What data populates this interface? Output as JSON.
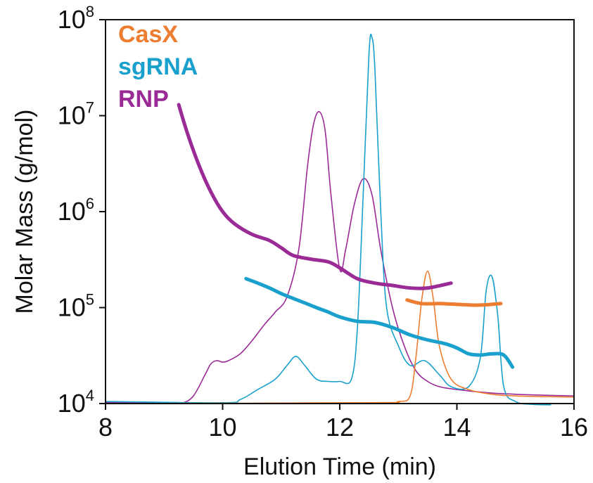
{
  "chart_data": {
    "type": "line",
    "xlabel": "Elution Time (min)",
    "ylabel": "Molar Mass (g/mol)",
    "xlim": [
      8,
      16
    ],
    "ylim": [
      10000,
      100000000
    ],
    "yscale": "log",
    "x_ticks": [
      "8",
      "10",
      "12",
      "14",
      "16"
    ],
    "y_ticks": [
      {
        "base": "10",
        "exp": "4"
      },
      {
        "base": "10",
        "exp": "5"
      },
      {
        "base": "10",
        "exp": "6"
      },
      {
        "base": "10",
        "exp": "7"
      },
      {
        "base": "10",
        "exp": "8"
      }
    ],
    "legend": {
      "placement": "top-left",
      "entries": [
        {
          "name": "CasX",
          "color": "#ED7D31"
        },
        {
          "name": "sgRNA",
          "color": "#1AA0CC"
        },
        {
          "name": "RNP",
          "color": "#9A2A96"
        }
      ]
    },
    "grid": false,
    "series": [
      {
        "name": "RNP",
        "kind": "molar_mass",
        "color": "#9A2A96",
        "x": [
          9.25,
          9.4,
          9.6,
          9.8,
          10.0,
          10.2,
          10.5,
          10.8,
          11.0,
          11.2,
          11.5,
          11.8,
          12.0,
          12.3,
          12.6,
          12.9,
          13.2,
          13.5,
          13.9
        ],
        "y": [
          13000000,
          6500000,
          3000000,
          1600000,
          1000000,
          750000,
          580000,
          500000,
          420000,
          350000,
          320000,
          300000,
          260000,
          200000,
          180000,
          170000,
          160000,
          160000,
          180000
        ]
      },
      {
        "name": "sgRNA",
        "kind": "molar_mass",
        "color": "#1AA0CC",
        "x": [
          10.4,
          10.6,
          10.8,
          11.0,
          11.2,
          11.4,
          11.6,
          11.8,
          12.0,
          12.3,
          12.6,
          12.9,
          13.2,
          13.5,
          13.8,
          14.0,
          14.2,
          14.4,
          14.6,
          14.8,
          14.95
        ],
        "y": [
          200000,
          180000,
          160000,
          140000,
          125000,
          112000,
          100000,
          90000,
          80000,
          72000,
          70000,
          62000,
          52000,
          46000,
          42000,
          38000,
          33000,
          32000,
          33000,
          32000,
          24000
        ]
      },
      {
        "name": "CasX",
        "kind": "molar_mass",
        "color": "#ED7D31",
        "x": [
          13.15,
          13.4,
          13.7,
          14.0,
          14.3,
          14.5,
          14.75
        ],
        "y": [
          120000,
          110000,
          110000,
          108000,
          106000,
          107000,
          110000
        ]
      },
      {
        "name": "RNP",
        "kind": "detector_trace",
        "color": "#9A2A96",
        "x": [
          8.0,
          9.0,
          9.3,
          9.5,
          9.7,
          9.8,
          9.9,
          10.0,
          10.1,
          10.3,
          10.5,
          10.7,
          10.9,
          11.1,
          11.3,
          11.45,
          11.55,
          11.65,
          11.75,
          11.85,
          12.0,
          12.1,
          12.25,
          12.4,
          12.55,
          12.7,
          12.9,
          13.1,
          13.3,
          13.5,
          13.7,
          14.0,
          14.5,
          15.0,
          15.5,
          16.0
        ],
        "y": [
          10300,
          10100,
          10100,
          12000,
          20000,
          26000,
          28000,
          27000,
          28000,
          33000,
          45000,
          65000,
          90000,
          130000,
          400000,
          3000000,
          8000000,
          11000000,
          7000000,
          1500000,
          250000,
          400000,
          1200000,
          2200000,
          1500000,
          400000,
          100000,
          40000,
          22000,
          17000,
          15000,
          14000,
          13000,
          12500,
          12200,
          12000
        ]
      },
      {
        "name": "sgRNA",
        "kind": "detector_trace",
        "color": "#1AA0CC",
        "x": [
          8.0,
          10.0,
          10.3,
          10.6,
          10.9,
          11.1,
          11.25,
          11.4,
          11.6,
          11.8,
          12.0,
          12.2,
          12.3,
          12.4,
          12.5,
          12.55,
          12.6,
          12.7,
          12.8,
          13.0,
          13.2,
          13.45,
          13.7,
          13.9,
          14.2,
          14.4,
          14.5,
          14.6,
          14.7,
          14.8,
          15.0,
          15.3,
          15.6
        ],
        "y": [
          10500,
          10200,
          11000,
          14000,
          18000,
          25000,
          31000,
          25000,
          18000,
          17000,
          17000,
          18000,
          60000,
          1500000,
          45000000,
          65000000,
          30000000,
          1000000,
          100000,
          40000,
          25000,
          28000,
          20000,
          15000,
          15000,
          30000,
          150000,
          210000,
          80000,
          15000,
          10500,
          9800,
          9700
        ]
      },
      {
        "name": "CasX",
        "kind": "detector_trace",
        "color": "#ED7D31",
        "x": [
          8.0,
          12.5,
          13.0,
          13.2,
          13.3,
          13.4,
          13.5,
          13.6,
          13.7,
          13.9,
          14.2,
          14.6,
          15.0,
          15.5,
          16.0
        ],
        "y": [
          10000,
          10200,
          10500,
          12000,
          30000,
          120000,
          240000,
          120000,
          40000,
          18000,
          14000,
          12500,
          12000,
          11800,
          11700
        ]
      }
    ]
  }
}
